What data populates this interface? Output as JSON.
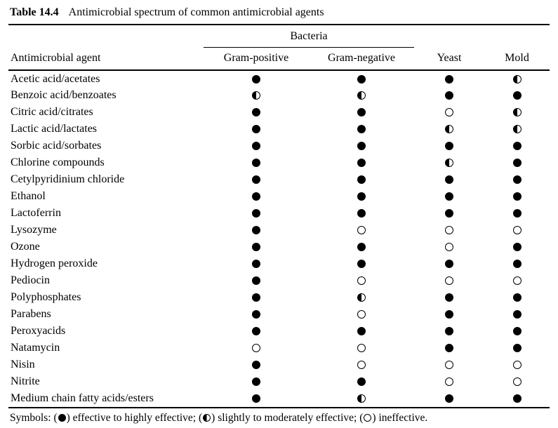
{
  "title": {
    "label": "Table 14.4",
    "text": "Antimicrobial spectrum of common antimicrobial agents"
  },
  "table": {
    "group_header": "Bacteria",
    "columns": [
      "Antimicrobial agent",
      "Gram-positive",
      "Gram-negative",
      "Yeast",
      "Mold"
    ],
    "rows": [
      {
        "agent": "Acetic acid/acetates",
        "cells": [
          "full",
          "full",
          "full",
          "half"
        ]
      },
      {
        "agent": "Benzoic acid/benzoates",
        "cells": [
          "half",
          "half",
          "full",
          "full"
        ]
      },
      {
        "agent": "Citric acid/citrates",
        "cells": [
          "full",
          "full",
          "none",
          "half"
        ]
      },
      {
        "agent": "Lactic acid/lactates",
        "cells": [
          "full",
          "full",
          "half",
          "half"
        ]
      },
      {
        "agent": "Sorbic acid/sorbates",
        "cells": [
          "full",
          "full",
          "full",
          "full"
        ]
      },
      {
        "agent": "Chlorine compounds",
        "cells": [
          "full",
          "full",
          "half",
          "full"
        ]
      },
      {
        "agent": "Cetylpyridinium chloride",
        "cells": [
          "full",
          "full",
          "full",
          "full"
        ]
      },
      {
        "agent": "Ethanol",
        "cells": [
          "full",
          "full",
          "full",
          "full"
        ]
      },
      {
        "agent": "Lactoferrin",
        "cells": [
          "full",
          "full",
          "full",
          "full"
        ]
      },
      {
        "agent": "Lysozyme",
        "cells": [
          "full",
          "none",
          "none",
          "none"
        ]
      },
      {
        "agent": "Ozone",
        "cells": [
          "full",
          "full",
          "none",
          "full"
        ]
      },
      {
        "agent": "Hydrogen peroxide",
        "cells": [
          "full",
          "full",
          "full",
          "full"
        ]
      },
      {
        "agent": "Pediocin",
        "cells": [
          "full",
          "none",
          "none",
          "none"
        ]
      },
      {
        "agent": "Polyphosphates",
        "cells": [
          "full",
          "half",
          "full",
          "full"
        ]
      },
      {
        "agent": "Parabens",
        "cells": [
          "full",
          "none",
          "full",
          "full"
        ]
      },
      {
        "agent": "Peroxyacids",
        "cells": [
          "full",
          "full",
          "full",
          "full"
        ]
      },
      {
        "agent": "Natamycin",
        "cells": [
          "none",
          "none",
          "full",
          "full"
        ]
      },
      {
        "agent": "Nisin",
        "cells": [
          "full",
          "none",
          "none",
          "none"
        ]
      },
      {
        "agent": "Nitrite",
        "cells": [
          "full",
          "full",
          "none",
          "none"
        ]
      },
      {
        "agent": "Medium chain fatty acids/esters",
        "cells": [
          "full",
          "half",
          "full",
          "full"
        ]
      }
    ]
  },
  "symbols": {
    "full": "filled-circle-icon",
    "half": "half-filled-circle-icon",
    "none": "open-circle-icon"
  },
  "legend": {
    "prefix": "Symbols:",
    "items": [
      {
        "symbol": "full",
        "label": "effective to highly effective"
      },
      {
        "symbol": "half",
        "label": "slightly to moderately effective"
      },
      {
        "symbol": "none",
        "label": "ineffective"
      }
    ],
    "separator": "; ",
    "terminator": "."
  }
}
